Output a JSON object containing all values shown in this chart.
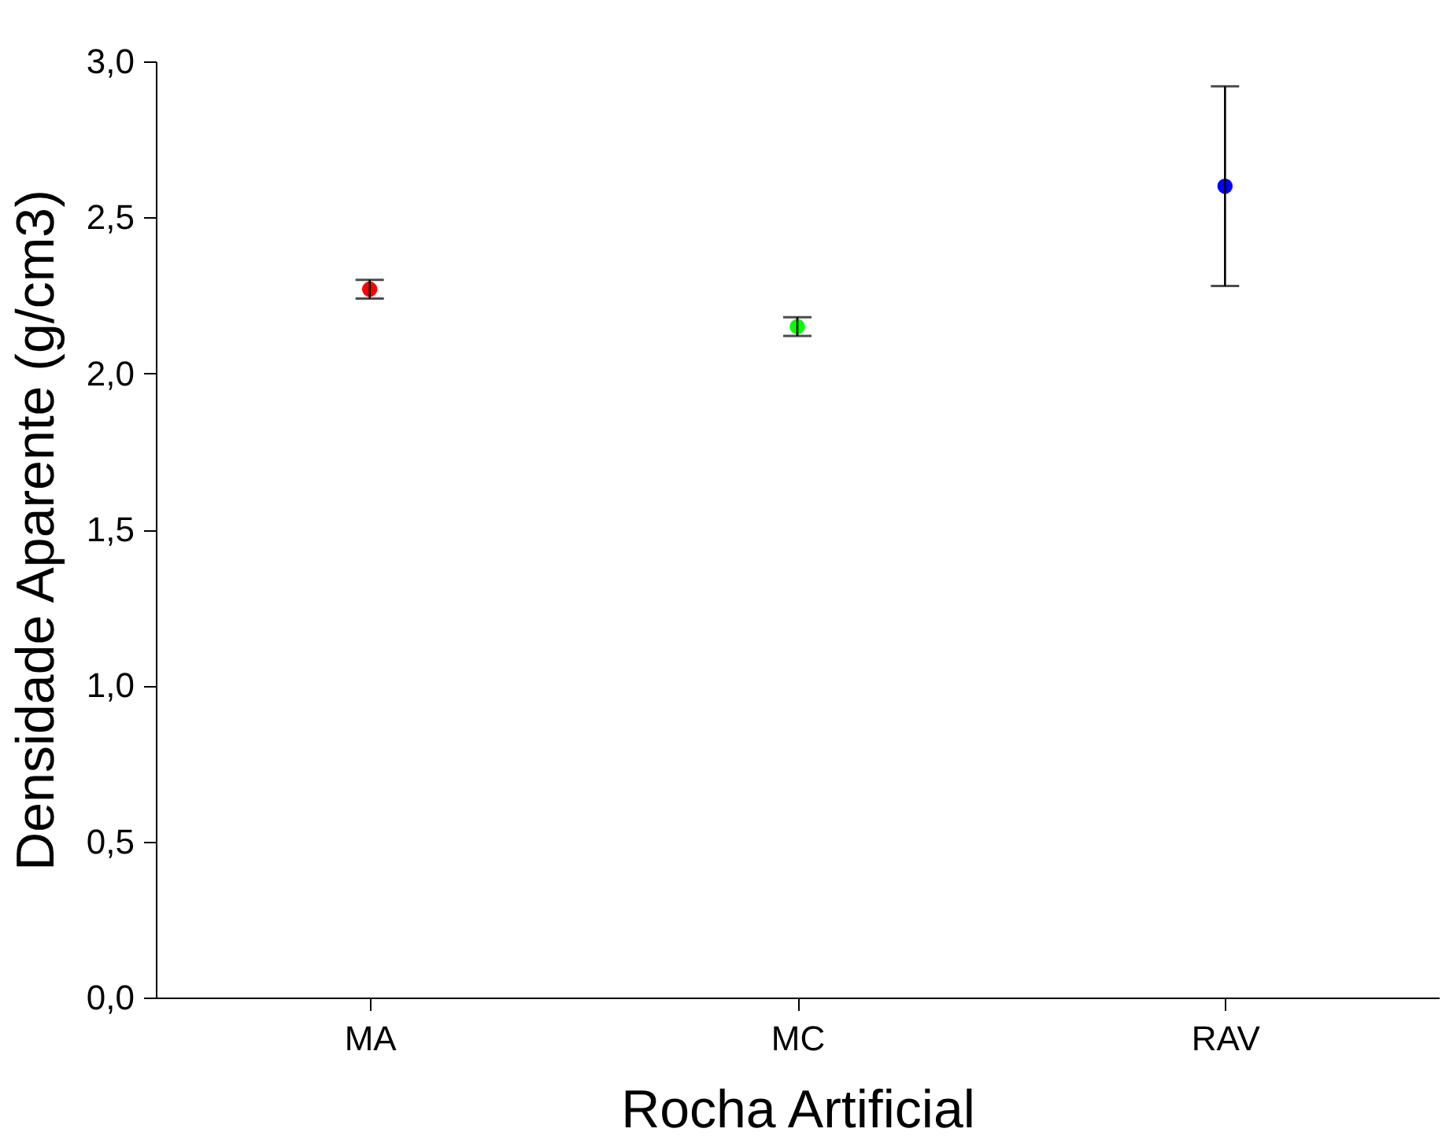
{
  "chart_data": {
    "type": "scatter",
    "xlabel": "Rocha Artificial",
    "ylabel": "Densidade Aparente (g/cm3)",
    "categories": [
      "MA",
      "MC",
      "RAV"
    ],
    "values": [
      2.27,
      2.15,
      2.6
    ],
    "colors": [
      "#ff0000",
      "#00ff00",
      "#0000ff"
    ],
    "errors": [
      0.03,
      0.03,
      0.32
    ],
    "ylim": [
      0,
      3
    ],
    "yticks": [
      {
        "value": 0,
        "label": "0,0"
      },
      {
        "value": 0.5,
        "label": "0,5"
      },
      {
        "value": 1,
        "label": "1,0"
      },
      {
        "value": 1.5,
        "label": "1,5"
      },
      {
        "value": 2,
        "label": "2,0"
      },
      {
        "value": 2.5,
        "label": "2,5"
      },
      {
        "value": 3,
        "label": "3,0"
      }
    ],
    "marker": "circle"
  }
}
